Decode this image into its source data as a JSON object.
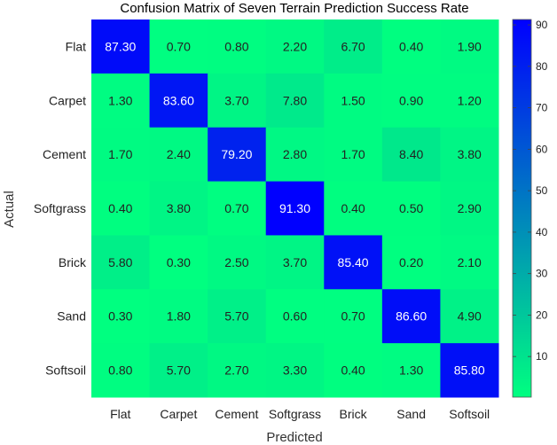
{
  "chart_data": {
    "type": "heatmap",
    "title": "Confusion Matrix of Seven Terrain Prediction Success Rate",
    "xlabel": "Predicted",
    "ylabel": "Actual",
    "x_categories": [
      "Flat",
      "Carpet",
      "Cement",
      "Softgrass",
      "Brick",
      "Sand",
      "Softsoil"
    ],
    "y_categories": [
      "Flat",
      "Carpet",
      "Cement",
      "Softgrass",
      "Brick",
      "Sand",
      "Softsoil"
    ],
    "values": [
      [
        87.3,
        0.7,
        0.8,
        2.2,
        6.7,
        0.4,
        1.9
      ],
      [
        1.3,
        83.6,
        3.7,
        7.8,
        1.5,
        0.9,
        1.2
      ],
      [
        1.7,
        2.4,
        79.2,
        2.8,
        1.7,
        8.4,
        3.8
      ],
      [
        0.4,
        3.8,
        0.7,
        91.3,
        0.4,
        0.5,
        2.9
      ],
      [
        5.8,
        0.3,
        2.5,
        3.7,
        85.4,
        0.2,
        2.1
      ],
      [
        0.3,
        1.8,
        5.7,
        0.6,
        0.7,
        86.6,
        4.9
      ],
      [
        0.8,
        5.7,
        2.7,
        3.3,
        0.4,
        1.3,
        85.8
      ]
    ],
    "value_labels": [
      [
        "87.30",
        "0.70",
        "0.80",
        "2.20",
        "6.70",
        "0.40",
        "1.90"
      ],
      [
        "1.30",
        "83.60",
        "3.70",
        "7.80",
        "1.50",
        "0.90",
        "1.20"
      ],
      [
        "1.70",
        "2.40",
        "79.20",
        "2.80",
        "1.70",
        "8.40",
        "3.80"
      ],
      [
        "0.40",
        "3.80",
        "0.70",
        "91.30",
        "0.40",
        "0.50",
        "2.90"
      ],
      [
        "5.80",
        "0.30",
        "2.50",
        "3.70",
        "85.40",
        "0.20",
        "2.10"
      ],
      [
        "0.30",
        "1.80",
        "5.70",
        "0.60",
        "0.70",
        "86.60",
        "4.90"
      ],
      [
        "0.80",
        "5.70",
        "2.70",
        "3.30",
        "0.40",
        "1.30",
        "85.80"
      ]
    ],
    "colorbar": {
      "range": [
        0.2,
        91.3
      ],
      "ticks": [
        10,
        20,
        30,
        40,
        50,
        60,
        70,
        80,
        90
      ],
      "color_low": "#00ff80",
      "color_high": "#0000ff"
    }
  }
}
